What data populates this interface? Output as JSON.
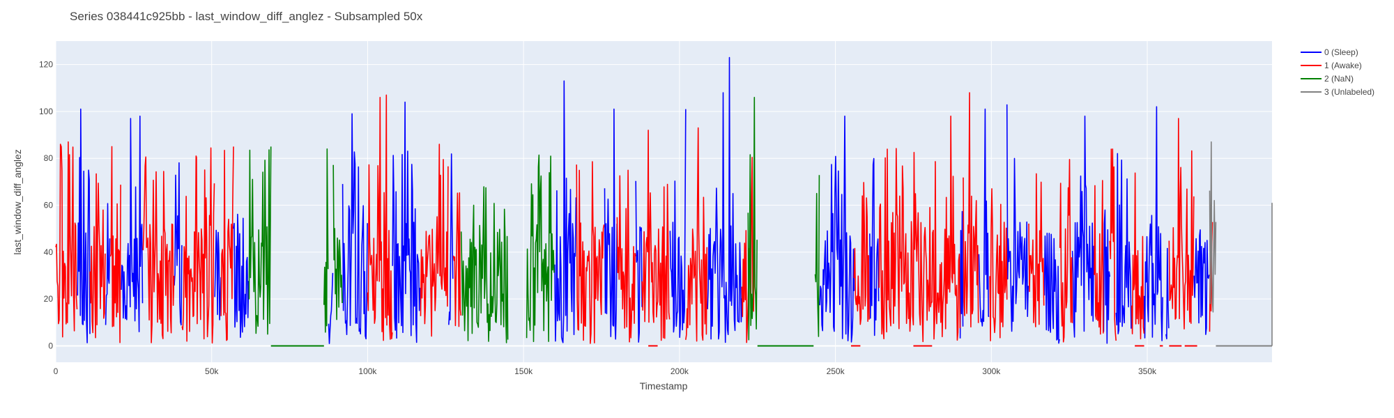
{
  "chart_data": {
    "type": "line",
    "title": "Series 038441c925bb - last_window_diff_anglez - Subsampled 50x",
    "xlabel": "Timestamp",
    "ylabel": "last_window_diff_anglez",
    "xlim": [
      0,
      390000
    ],
    "ylim": [
      -7,
      130
    ],
    "x_ticks": [
      0,
      50000,
      100000,
      150000,
      200000,
      250000,
      300000,
      350000
    ],
    "x_tick_labels": [
      "0",
      "50k",
      "100k",
      "150k",
      "200k",
      "250k",
      "300k",
      "350k"
    ],
    "y_ticks": [
      0,
      20,
      40,
      60,
      80,
      100,
      120
    ],
    "y_tick_labels": [
      "0",
      "20",
      "40",
      "60",
      "80",
      "100",
      "120"
    ],
    "grid": true,
    "legend_position": "top-right",
    "colors": {
      "0": "#0000ff",
      "1": "#ff0000",
      "2": "#008000",
      "3": "#808080"
    },
    "series": [
      {
        "name": "0 (Sleep)",
        "color": "#0000ff",
        "segments": [
          [
            7000,
            11000
          ],
          [
            16000,
            17500
          ],
          [
            21000,
            28000
          ],
          [
            38000,
            40500
          ],
          [
            51000,
            53000
          ],
          [
            57000,
            62000
          ],
          [
            87500,
            89000
          ],
          [
            92000,
            100000
          ],
          [
            108000,
            117000
          ],
          [
            126000,
            127500
          ],
          [
            160000,
            167000
          ],
          [
            176000,
            180000
          ],
          [
            186000,
            188000
          ],
          [
            197000,
            202000
          ],
          [
            209000,
            220000
          ],
          [
            245000,
            256000
          ],
          [
            261000,
            264000
          ],
          [
            290000,
            291000
          ],
          [
            296000,
            299500
          ],
          [
            305000,
            312000
          ],
          [
            317000,
            322000
          ],
          [
            326000,
            333000
          ],
          [
            336000,
            338000
          ],
          [
            340000,
            345000
          ],
          [
            349000,
            355000
          ],
          [
            356000,
            357000
          ],
          [
            365000,
            370000
          ]
        ],
        "peaks": [
          [
            8000,
            101
          ],
          [
            24000,
            97
          ],
          [
            27000,
            98
          ],
          [
            95000,
            99
          ],
          [
            112000,
            104
          ],
          [
            163000,
            113
          ],
          [
            179000,
            101
          ],
          [
            202000,
            101
          ],
          [
            214000,
            108
          ],
          [
            216000,
            123
          ],
          [
            253000,
            98
          ],
          [
            298000,
            101
          ],
          [
            305000,
            103
          ],
          [
            330000,
            98
          ],
          [
            353000,
            102
          ]
        ]
      },
      {
        "name": "1 (Awake)",
        "color": "#ff0000",
        "segments": [
          [
            0,
            7000
          ],
          [
            11000,
            16000
          ],
          [
            17500,
            21000
          ],
          [
            28000,
            38000
          ],
          [
            40500,
            51000
          ],
          [
            53000,
            57000
          ],
          [
            100000,
            108000
          ],
          [
            117000,
            126000
          ],
          [
            127500,
            130000
          ],
          [
            167000,
            176000
          ],
          [
            180000,
            186000
          ],
          [
            188000,
            197000
          ],
          [
            202000,
            209000
          ],
          [
            220000,
            224000
          ],
          [
            256000,
            261000
          ],
          [
            264000,
            290000
          ],
          [
            291000,
            296000
          ],
          [
            299500,
            305000
          ],
          [
            312000,
            317000
          ],
          [
            322000,
            326000
          ],
          [
            333000,
            336000
          ],
          [
            338000,
            340000
          ],
          [
            345000,
            349000
          ],
          [
            357000,
            365000
          ],
          [
            370000,
            371000
          ]
        ],
        "peaks": [
          [
            1500,
            86
          ],
          [
            4000,
            87
          ],
          [
            18000,
            85
          ],
          [
            45000,
            81
          ],
          [
            57000,
            85
          ],
          [
            104000,
            106
          ],
          [
            106000,
            107
          ],
          [
            123000,
            86
          ],
          [
            178000,
            92
          ],
          [
            190000,
            92
          ],
          [
            206000,
            93
          ],
          [
            287000,
            98
          ],
          [
            293000,
            108
          ],
          [
            360000,
            97
          ]
        ],
        "flat_zero": [
          [
            190000,
            193000
          ],
          [
            255000,
            258000
          ],
          [
            275000,
            281000
          ],
          [
            346000,
            349000
          ],
          [
            354000,
            355000
          ],
          [
            357000,
            361000
          ],
          [
            362000,
            366000
          ]
        ]
      },
      {
        "name": "2 (NaN)",
        "color": "#008000",
        "segments": [
          [
            62000,
            69000
          ],
          [
            86000,
            87500
          ],
          [
            89000,
            92000
          ],
          [
            130000,
            145000
          ],
          [
            151000,
            160000
          ],
          [
            222000,
            225000
          ],
          [
            243500,
            245000
          ]
        ],
        "peaks": [
          [
            69000,
            85
          ],
          [
            87000,
            84
          ],
          [
            134000,
            60
          ],
          [
            224000,
            106
          ],
          [
            226000,
            107
          ],
          [
            244000,
            65
          ]
        ],
        "flat_zero": [
          [
            69000,
            86000
          ],
          [
            225000,
            243000
          ]
        ]
      },
      {
        "name": "3 (Unlabeled)",
        "color": "#808080",
        "segments": [
          [
            370000,
            372000
          ]
        ],
        "peaks": [
          [
            370500,
            87
          ],
          [
            371500,
            62
          ]
        ],
        "flat_zero": [
          [
            372000,
            390000
          ]
        ],
        "end_spike": [
          [
            390000,
            61
          ]
        ]
      }
    ]
  }
}
